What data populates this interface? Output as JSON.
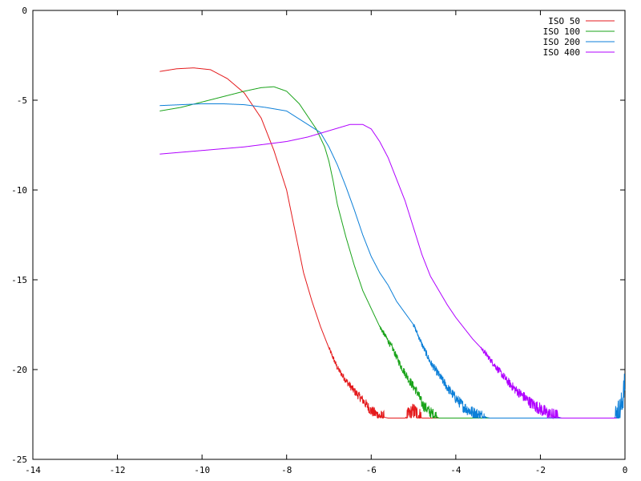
{
  "chart_data": {
    "type": "line",
    "title": "",
    "xlabel": "",
    "ylabel": "",
    "xlim": [
      -14,
      0
    ],
    "ylim": [
      -25,
      0
    ],
    "xticks": [
      -14,
      -12,
      -10,
      -8,
      -6,
      -4,
      -2,
      0
    ],
    "yticks": [
      0,
      -5,
      -10,
      -15,
      -20,
      -25
    ],
    "xtick_labels": [
      "-14",
      "-12",
      "-10",
      "-8",
      "-6",
      "-4",
      "-2",
      "0"
    ],
    "ytick_labels": [
      "0",
      "-5",
      "-10",
      "-15",
      "-20",
      "-25"
    ],
    "grid": false,
    "legend_position": "top-right",
    "series": [
      {
        "name": "ISO 50",
        "color": "#e41a1c",
        "noise_start": -7.0,
        "x": [
          -11.0,
          -10.6,
          -10.2,
          -9.8,
          -9.4,
          -9.0,
          -8.6,
          -8.3,
          -8.0,
          -7.8,
          -7.6,
          -7.4,
          -7.2,
          -7.0,
          -6.8,
          -6.6,
          -6.4,
          -6.2,
          -6.0,
          -5.8,
          -5.6,
          -5.2,
          -5.0,
          -4.8,
          -4.6,
          -4.0,
          -2.0,
          -1.0,
          -0.2
        ],
        "y": [
          -3.4,
          -3.25,
          -3.2,
          -3.3,
          -3.8,
          -4.6,
          -6.0,
          -7.8,
          -10.0,
          -12.3,
          -14.6,
          -16.2,
          -17.6,
          -18.8,
          -19.9,
          -20.6,
          -21.2,
          -21.7,
          -22.3,
          -22.6,
          -22.7,
          -22.7,
          -22.3,
          -22.7,
          -22.7,
          -22.7,
          -22.7,
          -22.7,
          -22.7
        ]
      },
      {
        "name": "ISO 100",
        "color": "#1aa31a",
        "noise_start": -5.8,
        "x": [
          -11.0,
          -10.5,
          -10.0,
          -9.5,
          -9.0,
          -8.6,
          -8.3,
          -8.0,
          -7.7,
          -7.5,
          -7.3,
          -7.1,
          -7.0,
          -6.9,
          -6.8,
          -6.6,
          -6.4,
          -6.2,
          -6.0,
          -5.8,
          -5.5,
          -5.3,
          -5.1,
          -4.9,
          -4.8,
          -4.6,
          -4.4,
          -4.0,
          -0.2
        ],
        "y": [
          -5.6,
          -5.4,
          -5.1,
          -4.8,
          -4.5,
          -4.3,
          -4.25,
          -4.5,
          -5.2,
          -5.9,
          -6.6,
          -7.6,
          -8.4,
          -9.5,
          -10.8,
          -12.6,
          -14.2,
          -15.6,
          -16.6,
          -17.6,
          -18.8,
          -19.8,
          -20.6,
          -21.3,
          -21.9,
          -22.4,
          -22.7,
          -22.7,
          -22.7
        ]
      },
      {
        "name": "ISO 200",
        "color": "#0c7fd8",
        "noise_start": -5.0,
        "x": [
          -11.0,
          -10.5,
          -10.0,
          -9.5,
          -9.0,
          -8.5,
          -8.0,
          -7.6,
          -7.2,
          -7.0,
          -6.8,
          -6.6,
          -6.4,
          -6.2,
          -6.0,
          -5.8,
          -5.6,
          -5.4,
          -5.0,
          -4.8,
          -4.6,
          -4.4,
          -4.2,
          -4.0,
          -3.8,
          -3.6,
          -3.4,
          -3.2,
          -3.0,
          -0.25,
          -0.1,
          0.0
        ],
        "y": [
          -5.3,
          -5.25,
          -5.2,
          -5.2,
          -5.25,
          -5.4,
          -5.6,
          -6.2,
          -6.8,
          -7.6,
          -8.6,
          -9.8,
          -11.1,
          -12.5,
          -13.7,
          -14.6,
          -15.3,
          -16.2,
          -17.5,
          -18.6,
          -19.6,
          -20.3,
          -21.0,
          -21.6,
          -22.1,
          -22.4,
          -22.6,
          -22.7,
          -22.7,
          -22.7,
          -22.2,
          -20.8
        ]
      },
      {
        "name": "ISO 400",
        "color": "#b000ff",
        "noise_start": -3.4,
        "x": [
          -11.0,
          -10.0,
          -9.5,
          -9.0,
          -8.5,
          -8.0,
          -7.5,
          -7.0,
          -6.5,
          -6.2,
          -6.0,
          -5.8,
          -5.6,
          -5.4,
          -5.2,
          -5.0,
          -4.8,
          -4.6,
          -4.4,
          -4.2,
          -4.0,
          -3.8,
          -3.6,
          -3.4,
          -3.2,
          -3.0,
          -2.8,
          -2.6,
          -2.4,
          -2.2,
          -2.0,
          -1.8,
          -1.5,
          -0.2
        ],
        "y": [
          -8.0,
          -7.8,
          -7.7,
          -7.6,
          -7.45,
          -7.3,
          -7.05,
          -6.7,
          -6.35,
          -6.35,
          -6.6,
          -7.3,
          -8.2,
          -9.4,
          -10.6,
          -12.1,
          -13.6,
          -14.8,
          -15.6,
          -16.4,
          -17.1,
          -17.7,
          -18.3,
          -18.8,
          -19.4,
          -20.0,
          -20.6,
          -21.1,
          -21.5,
          -21.9,
          -22.2,
          -22.5,
          -22.7,
          -22.7
        ]
      }
    ]
  }
}
